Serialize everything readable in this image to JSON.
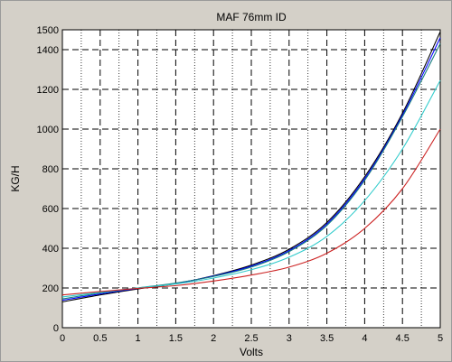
{
  "chart_data": {
    "type": "line",
    "title": "MAF 76mm ID",
    "xlabel": "Volts",
    "ylabel": "KG/H",
    "xlim": [
      0,
      5
    ],
    "ylim": [
      0,
      1500
    ],
    "x_ticks": [
      0,
      0.5,
      1,
      1.5,
      2,
      2.5,
      3,
      3.5,
      4,
      4.5,
      5
    ],
    "x_tick_labels": [
      "0",
      "0.5",
      "1",
      "1.5",
      "2",
      "2.5",
      "3",
      "3.5",
      "4",
      "4.5",
      "5"
    ],
    "y_ticks": [
      0,
      200,
      400,
      600,
      800,
      1000,
      1200,
      1400,
      1500
    ],
    "y_tick_labels": [
      "0",
      "200",
      "400",
      "600",
      "800",
      "1000",
      "1200",
      "1400",
      "1500"
    ],
    "grid": true,
    "x": [
      0,
      0.5,
      1,
      1.5,
      2,
      2.5,
      3,
      3.5,
      4,
      4.5,
      5
    ],
    "series": [
      {
        "color": "#000000",
        "values": [
          130,
          165,
          195,
          222,
          262,
          315,
          395,
          530,
          760,
          1080,
          1490
        ]
      },
      {
        "color": "#0000ff",
        "values": [
          138,
          170,
          198,
          223,
          260,
          310,
          388,
          522,
          750,
          1070,
          1460
        ]
      },
      {
        "color": "#1a7f7f",
        "values": [
          145,
          175,
          200,
          225,
          258,
          305,
          383,
          515,
          742,
          1062,
          1430
        ]
      },
      {
        "color": "#33cccc",
        "values": [
          155,
          178,
          200,
          220,
          250,
          292,
          355,
          460,
          640,
          900,
          1245
        ]
      },
      {
        "color": "#cc2222",
        "values": [
          165,
          182,
          198,
          212,
          235,
          265,
          305,
          375,
          500,
          700,
          1000
        ]
      }
    ]
  }
}
